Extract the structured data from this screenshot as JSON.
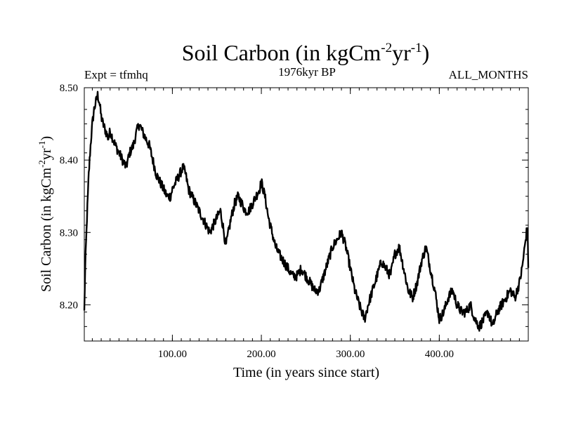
{
  "chart_data": {
    "type": "line",
    "title_main": "Soil Carbon (in kgCm",
    "title_sup1": "-2",
    "title_mid": "yr",
    "title_sup2": "-1",
    "title_close": ")",
    "subtitle_left": "Expt = tfmhq",
    "subtitle_center": "1976kyr BP",
    "subtitle_right": "ALL_MONTHS",
    "xlabel": "Time (in years since start)",
    "ylabel_main": "Soil Carbon (in kgCm",
    "ylabel_sup1": "-2",
    "ylabel_mid": "yr",
    "ylabel_sup2": "-1",
    "ylabel_close": ")",
    "xlim": [
      1,
      500
    ],
    "ylim": [
      8.15,
      8.5
    ],
    "xticks": [
      100,
      200,
      300,
      400
    ],
    "xtick_labels": [
      "100.00",
      "200.00",
      "300.00",
      "400.00"
    ],
    "yticks": [
      8.2,
      8.3,
      8.4,
      8.5
    ],
    "ytick_labels": [
      "8.20",
      "8.30",
      "8.40",
      "8.50"
    ],
    "x_minor_step": 10,
    "y_minor_step": 0.02,
    "series": [
      {
        "name": "Soil Carbon",
        "color": "#000000",
        "x": [
          1,
          2,
          4,
          6,
          8,
          10,
          12,
          14,
          16,
          18,
          20,
          22,
          25,
          28,
          30,
          33,
          36,
          40,
          44,
          48,
          52,
          56,
          60,
          63,
          66,
          70,
          74,
          78,
          82,
          86,
          90,
          94,
          98,
          100,
          104,
          108,
          112,
          115,
          118,
          122,
          126,
          130,
          134,
          138,
          142,
          146,
          150,
          154,
          158,
          160,
          163,
          166,
          170,
          174,
          178,
          182,
          186,
          190,
          194,
          198,
          200,
          204,
          208,
          212,
          216,
          220,
          225,
          230,
          235,
          240,
          245,
          250,
          255,
          260,
          265,
          270,
          275,
          280,
          285,
          290,
          295,
          300,
          305,
          310,
          313,
          316,
          320,
          325,
          330,
          335,
          340,
          345,
          350,
          355,
          360,
          365,
          370,
          375,
          380,
          385,
          390,
          395,
          400,
          405,
          410,
          415,
          420,
          425,
          430,
          435,
          440,
          445,
          450,
          455,
          460,
          465,
          470,
          475,
          480,
          485,
          490,
          493,
          496,
          499,
          500
        ],
        "values": [
          8.19,
          8.25,
          8.32,
          8.38,
          8.42,
          8.45,
          8.47,
          8.48,
          8.49,
          8.48,
          8.46,
          8.45,
          8.44,
          8.43,
          8.44,
          8.43,
          8.42,
          8.41,
          8.4,
          8.39,
          8.41,
          8.42,
          8.44,
          8.45,
          8.44,
          8.43,
          8.42,
          8.4,
          8.38,
          8.37,
          8.36,
          8.35,
          8.35,
          8.36,
          8.37,
          8.38,
          8.39,
          8.38,
          8.36,
          8.35,
          8.34,
          8.33,
          8.32,
          8.31,
          8.3,
          8.31,
          8.32,
          8.33,
          8.3,
          8.28,
          8.3,
          8.32,
          8.34,
          8.35,
          8.34,
          8.33,
          8.33,
          8.34,
          8.35,
          8.36,
          8.37,
          8.35,
          8.32,
          8.3,
          8.28,
          8.27,
          8.26,
          8.25,
          8.24,
          8.24,
          8.25,
          8.24,
          8.23,
          8.22,
          8.22,
          8.24,
          8.26,
          8.28,
          8.29,
          8.3,
          8.28,
          8.25,
          8.22,
          8.2,
          8.19,
          8.18,
          8.2,
          8.22,
          8.24,
          8.26,
          8.25,
          8.24,
          8.27,
          8.28,
          8.25,
          8.22,
          8.21,
          8.23,
          8.26,
          8.28,
          8.25,
          8.22,
          8.18,
          8.19,
          8.21,
          8.22,
          8.2,
          8.19,
          8.19,
          8.2,
          8.18,
          8.17,
          8.18,
          8.19,
          8.17,
          8.19,
          8.2,
          8.21,
          8.22,
          8.21,
          8.23,
          8.25,
          8.28,
          8.31,
          8.25
        ]
      }
    ]
  }
}
